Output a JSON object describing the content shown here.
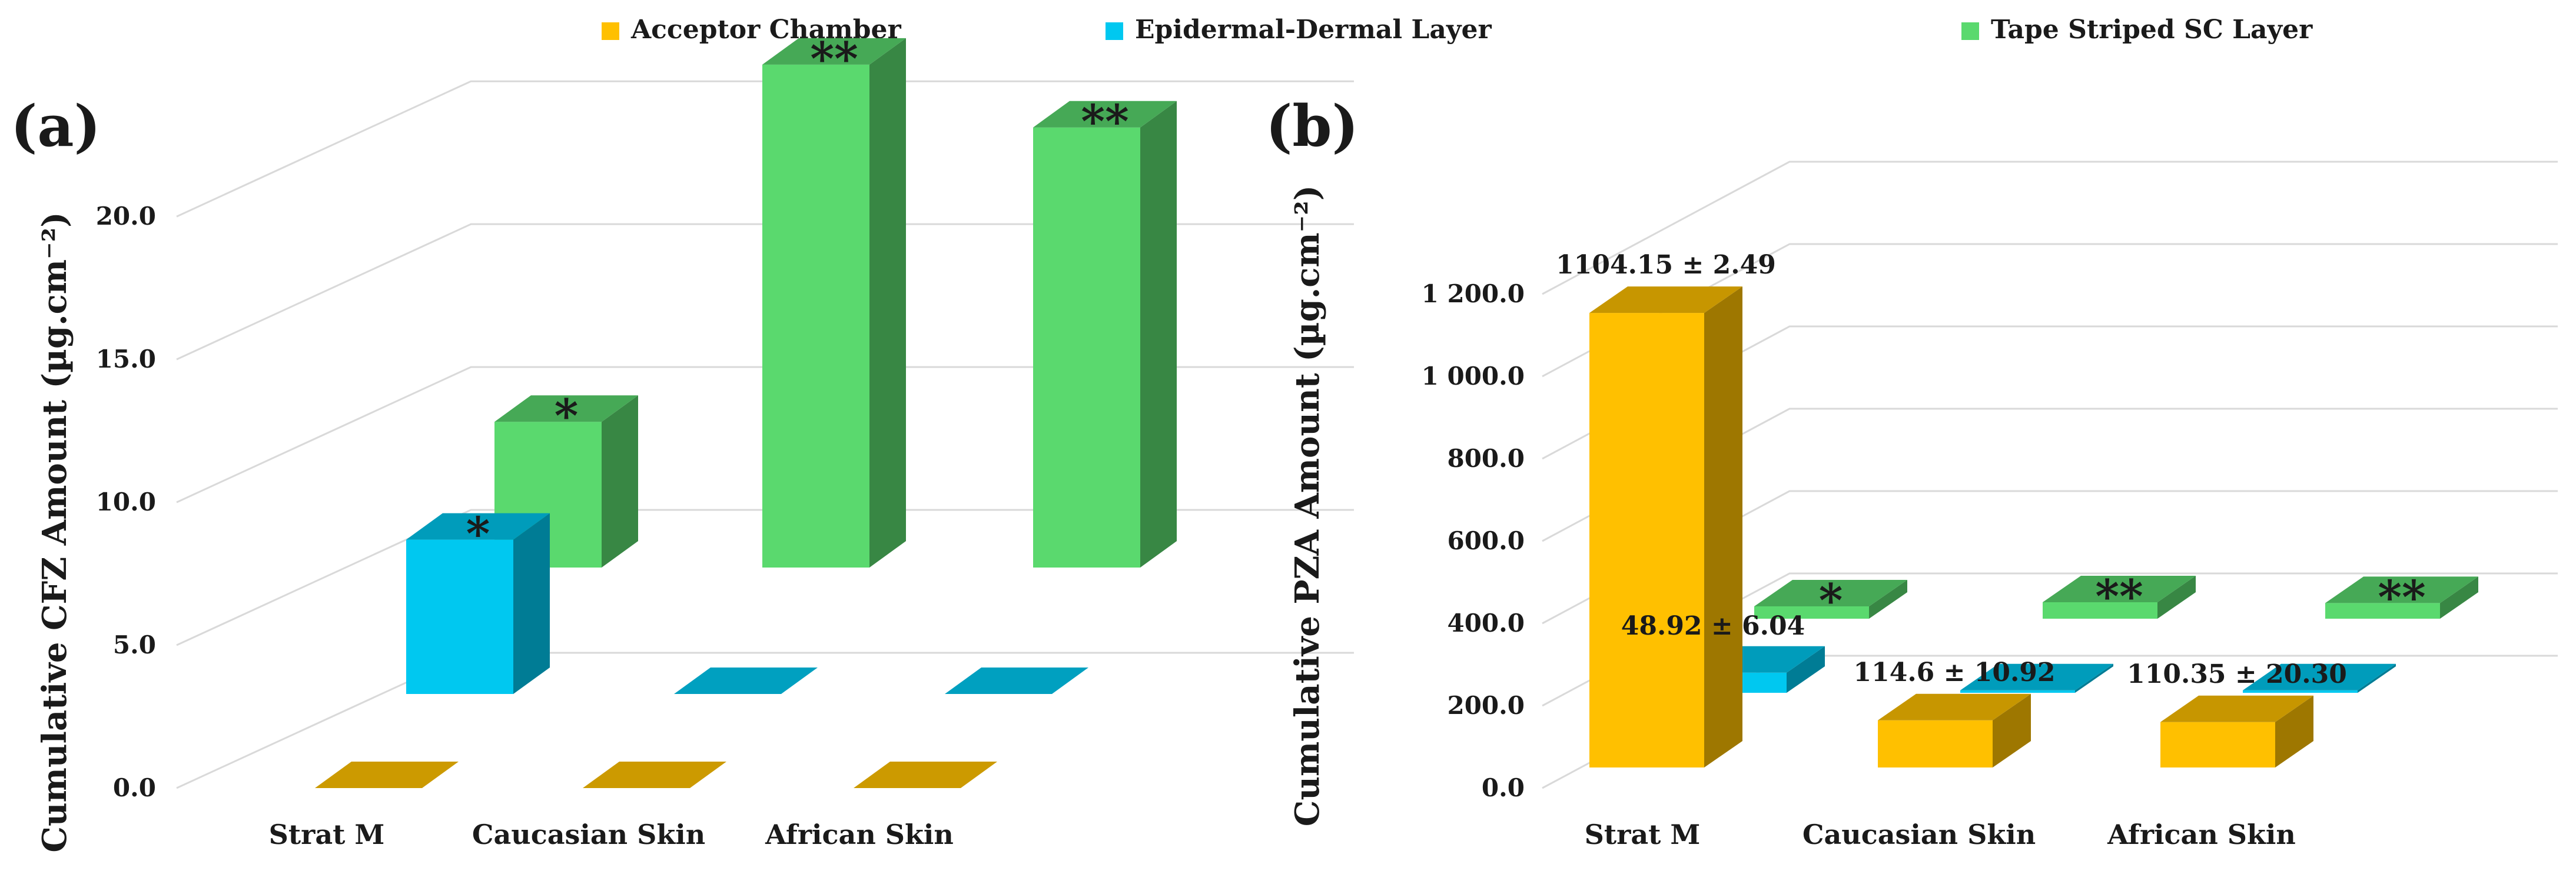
{
  "legend": [
    {
      "name": "Acceptor Chamber",
      "color": "#FFC000"
    },
    {
      "name": "Epidermal-Dermal Layer",
      "color": "#00C8F0"
    },
    {
      "name": "Tape Striped SC Layer",
      "color": "#5AD96E"
    }
  ],
  "chart_data": [
    {
      "type": "bar",
      "panel_label": "(a)",
      "ylabel": "Cumulative CFZ Amount (µg.cm⁻²)",
      "categories": [
        "Strat M",
        "Caucasian Skin",
        "African Skin"
      ],
      "yticks": [
        "0.0",
        "5.0",
        "10.0",
        "15.0",
        "20.0"
      ],
      "ylim": [
        0,
        25
      ],
      "series": [
        {
          "name": "Acceptor Chamber",
          "values": [
            0,
            0,
            0
          ]
        },
        {
          "name": "Epidermal-Dermal Layer",
          "values": [
            5.4,
            0,
            0
          ]
        },
        {
          "name": "Tape Striped SC Layer",
          "values": [
            5.1,
            17.6,
            15.4
          ]
        }
      ],
      "annotations": [
        {
          "category": "Strat M",
          "series": "Epidermal-Dermal Layer",
          "text": "*"
        },
        {
          "category": "Strat M",
          "series": "Tape Striped SC Layer",
          "text": "*"
        },
        {
          "category": "Caucasian Skin",
          "series": "Tape Striped SC Layer",
          "text": "**"
        },
        {
          "category": "African Skin",
          "series": "Tape Striped SC Layer",
          "text": "**"
        }
      ]
    },
    {
      "type": "bar",
      "panel_label": "(b)",
      "ylabel": "Cumulative PZA Amount (µg.cm⁻²)",
      "categories": [
        "Strat M",
        "Caucasian Skin",
        "African Skin"
      ],
      "yticks": [
        "0.0",
        "200.0",
        "400.0",
        "600.0",
        "800.0",
        "1 000.0",
        "1 200.0"
      ],
      "ylim": [
        0,
        1400
      ],
      "series": [
        {
          "name": "Acceptor Chamber",
          "values": [
            1104.15,
            114.6,
            110.35
          ]
        },
        {
          "name": "Epidermal-Dermal Layer",
          "values": [
            48.92,
            6,
            6
          ]
        },
        {
          "name": "Tape Striped SC Layer",
          "values": [
            30,
            40,
            38
          ]
        }
      ],
      "annotations": [
        {
          "category": "Strat M",
          "series": "Acceptor Chamber",
          "text": "1104.15 ± 2.49"
        },
        {
          "category": "Strat M",
          "series": "Epidermal-Dermal Layer",
          "text": "48.92 ± 6.04"
        },
        {
          "category": "Caucasian Skin",
          "series": "Acceptor Chamber",
          "text": "114.6 ± 10.92"
        },
        {
          "category": "African Skin",
          "series": "Acceptor Chamber",
          "text": "110.35 ± 20.30"
        },
        {
          "category": "Strat M",
          "series": "Tape Striped SC Layer",
          "text": "*"
        },
        {
          "category": "Caucasian Skin",
          "series": "Tape Striped SC Layer",
          "text": "**"
        },
        {
          "category": "African Skin",
          "series": "Tape Striped SC Layer",
          "text": "**"
        }
      ]
    }
  ]
}
